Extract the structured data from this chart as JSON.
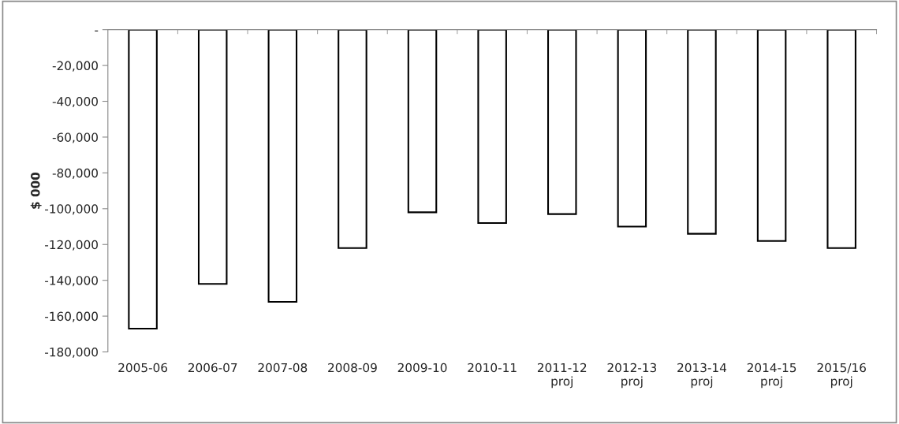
{
  "chart_data": {
    "type": "bar",
    "ylabel": "$ 000",
    "categories": [
      "2005-06",
      "2006-07",
      "2007-08",
      "2008-09",
      "2009-10",
      "2010-11",
      "2011-12\nproj",
      "2012-13\nproj",
      "2013-14\nproj",
      "2014-15\nproj",
      "2015/16\nproj"
    ],
    "values": [
      -167000,
      -142000,
      -152000,
      -122000,
      -102000,
      -108000,
      -103000,
      -110000,
      -114000,
      -118000,
      -122000
    ],
    "color": "#ffffff",
    "ylim": [
      -180000,
      0
    ],
    "yticks": [
      {
        "value": 0,
        "label": "-"
      },
      {
        "value": -20000,
        "label": "-20,000"
      },
      {
        "value": -40000,
        "label": "-40,000"
      },
      {
        "value": -60000,
        "label": "-60,000"
      },
      {
        "value": -80000,
        "label": "-80,000"
      },
      {
        "value": -100000,
        "label": "-100,000"
      },
      {
        "value": -120000,
        "label": "-120,000"
      },
      {
        "value": -140000,
        "label": "-140,000"
      },
      {
        "value": -160000,
        "label": "-160,000"
      },
      {
        "value": -180000,
        "label": "-180,000"
      }
    ],
    "grid": false,
    "legend": false
  }
}
